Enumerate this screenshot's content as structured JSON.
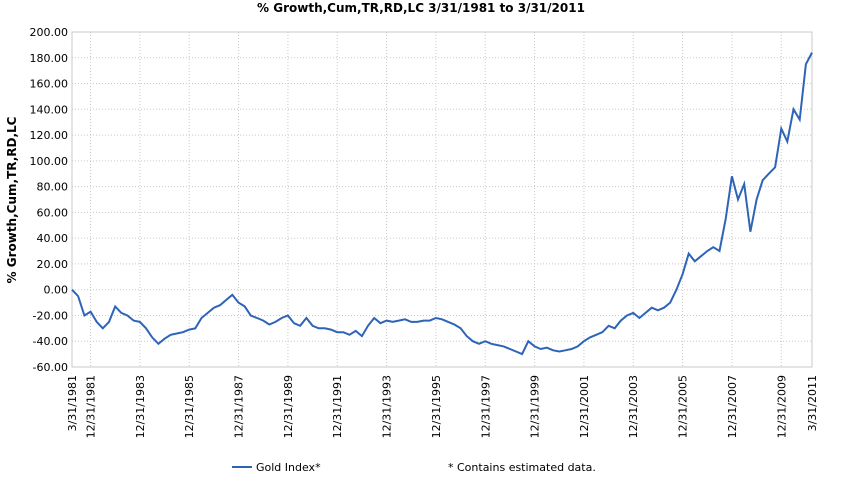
{
  "chart_data": {
    "type": "line",
    "title": "% Growth,Cum,TR,RD,LC 3/31/1981 to 3/31/2011",
    "y_label": "% Growth,Cum,TR,RD,LC",
    "footnote": "*  Contains estimated data.",
    "x": [
      "3/31/1981",
      "6/30/1981",
      "9/30/1981",
      "12/31/1981",
      "3/31/1982",
      "6/30/1982",
      "9/30/1982",
      "12/31/1982",
      "3/31/1983",
      "6/30/1983",
      "9/30/1983",
      "12/31/1983",
      "3/31/1984",
      "6/30/1984",
      "9/30/1984",
      "12/31/1984",
      "3/31/1985",
      "6/30/1985",
      "9/30/1985",
      "12/31/1985",
      "3/31/1986",
      "6/30/1986",
      "9/30/1986",
      "12/31/1986",
      "3/31/1987",
      "6/30/1987",
      "9/30/1987",
      "12/31/1987",
      "3/31/1988",
      "6/30/1988",
      "9/30/1988",
      "12/31/1988",
      "3/31/1989",
      "6/30/1989",
      "9/30/1989",
      "12/31/1989",
      "3/31/1990",
      "6/30/1990",
      "9/30/1990",
      "12/31/1990",
      "3/31/1991",
      "6/30/1991",
      "9/30/1991",
      "12/31/1991",
      "3/31/1992",
      "6/30/1992",
      "9/30/1992",
      "12/31/1992",
      "3/31/1993",
      "6/30/1993",
      "9/30/1993",
      "12/31/1993",
      "3/31/1994",
      "6/30/1994",
      "9/30/1994",
      "12/31/1994",
      "3/31/1995",
      "6/30/1995",
      "9/30/1995",
      "12/31/1995",
      "3/31/1996",
      "6/30/1996",
      "9/30/1996",
      "12/31/1996",
      "3/31/1997",
      "6/30/1997",
      "9/30/1997",
      "12/31/1997",
      "3/31/1998",
      "6/30/1998",
      "9/30/1998",
      "12/31/1998",
      "3/31/1999",
      "6/30/1999",
      "9/30/1999",
      "12/31/1999",
      "3/31/2000",
      "6/30/2000",
      "9/30/2000",
      "12/31/2000",
      "3/31/2001",
      "6/30/2001",
      "9/30/2001",
      "12/31/2001",
      "3/31/2002",
      "6/30/2002",
      "9/30/2002",
      "12/31/2002",
      "3/31/2003",
      "6/30/2003",
      "9/30/2003",
      "12/31/2003",
      "3/31/2004",
      "6/30/2004",
      "9/30/2004",
      "12/31/2004",
      "3/31/2005",
      "6/30/2005",
      "9/30/2005",
      "12/31/2005",
      "3/31/2006",
      "6/30/2006",
      "9/30/2006",
      "12/31/2006",
      "3/31/2007",
      "6/30/2007",
      "9/30/2007",
      "12/31/2007",
      "3/31/2008",
      "6/30/2008",
      "9/30/2008",
      "12/31/2008",
      "3/31/2009",
      "6/30/2009",
      "9/30/2009",
      "12/31/2009",
      "3/31/2010",
      "6/30/2010",
      "9/30/2010",
      "12/31/2010",
      "3/31/2011"
    ],
    "series": [
      {
        "name": "Gold Index*",
        "color": "#2e64b8",
        "values": [
          0,
          -5,
          -20,
          -17,
          -25,
          -30,
          -25,
          -13,
          -18,
          -20,
          -24,
          -25,
          -30,
          -37,
          -42,
          -38,
          -35,
          -34,
          -33,
          -31,
          -30,
          -22,
          -18,
          -14,
          -12,
          -8,
          -4,
          -10,
          -13,
          -20,
          -22,
          -24,
          -27,
          -25,
          -22,
          -20,
          -26,
          -28,
          -22,
          -28,
          -30,
          -30,
          -31,
          -33,
          -33,
          -35,
          -32,
          -36,
          -28,
          -22,
          -26,
          -24,
          -25,
          -24,
          -23,
          -25,
          -25,
          -24,
          -24,
          -22,
          -23,
          -25,
          -27,
          -30,
          -36,
          -40,
          -42,
          -40,
          -42,
          -43,
          -44,
          -46,
          -48,
          -50,
          -40,
          -44,
          -46,
          -45,
          -47,
          -48,
          -47,
          -46,
          -44,
          -40,
          -37,
          -35,
          -33,
          -28,
          -30,
          -24,
          -20,
          -18,
          -22,
          -18,
          -14,
          -16,
          -14,
          -10,
          0,
          12,
          28,
          22,
          26,
          30,
          33,
          30,
          55,
          88,
          70,
          82,
          45,
          70,
          85,
          90,
          95,
          125,
          115,
          140,
          132,
          175,
          184
        ]
      }
    ],
    "xlim": [
      "3/31/1981",
      "3/31/2011"
    ],
    "xticks": [
      "3/31/1981",
      "12/31/1981",
      "12/31/1983",
      "12/31/1985",
      "12/31/1987",
      "12/31/1989",
      "12/31/1991",
      "12/31/1993",
      "12/31/1995",
      "12/31/1997",
      "12/31/1999",
      "12/31/2001",
      "12/31/2003",
      "12/31/2005",
      "12/31/2007",
      "12/31/2009",
      "3/31/2011"
    ],
    "ylim": [
      -60,
      200
    ],
    "yticks": [
      {
        "value": -60,
        "label": "-60.00"
      },
      {
        "value": -40,
        "label": "-40.00"
      },
      {
        "value": -20,
        "label": "-20.00"
      },
      {
        "value": 0,
        "label": "0.00"
      },
      {
        "value": 20,
        "label": "20.00"
      },
      {
        "value": 40,
        "label": "40.00"
      },
      {
        "value": 60,
        "label": "60.00"
      },
      {
        "value": 80,
        "label": "80.00"
      },
      {
        "value": 100,
        "label": "100.00"
      },
      {
        "value": 120,
        "label": "120.00"
      },
      {
        "value": 140,
        "label": "140.00"
      },
      {
        "value": 160,
        "label": "160.00"
      },
      {
        "value": 180,
        "label": "180.00"
      },
      {
        "value": 200,
        "label": "200.00"
      }
    ],
    "grid": true
  }
}
